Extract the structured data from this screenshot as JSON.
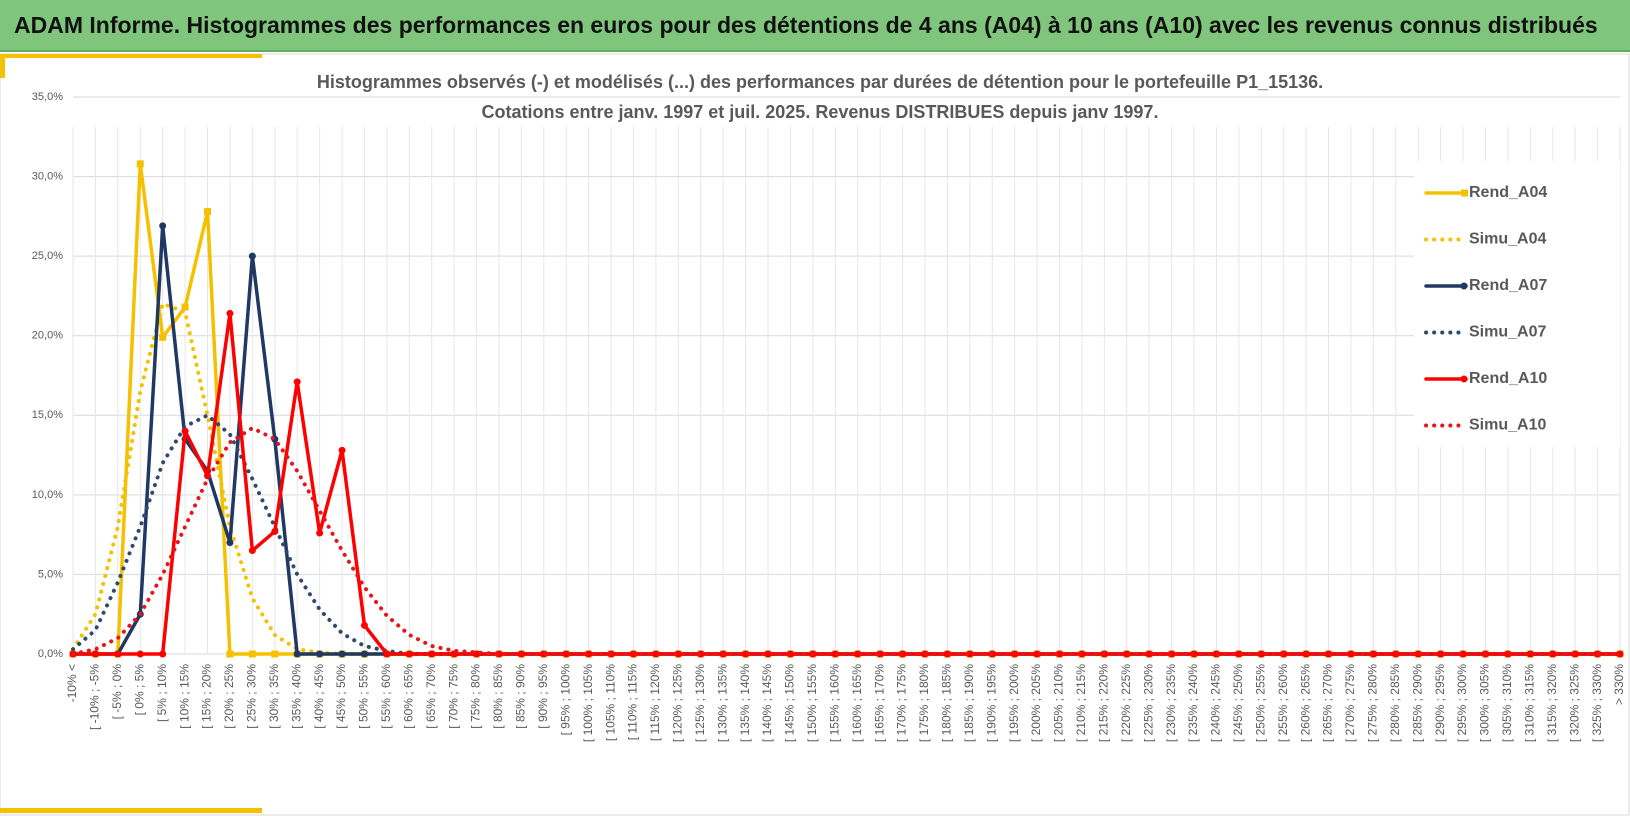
{
  "header": {
    "title": "ADAM Informe. Histogrammes des performances en euros pour des détentions de 4 ans (A04) à 10 ans (A10) avec les revenus connus distribués"
  },
  "chart_data": {
    "type": "line",
    "title": [
      "Histogrammes observés (-) et modélisés (...) des performances par durées de détention pour le portefeuille P1_15136.",
      "Cotations entre janv. 1997 et juil. 2025. Revenus DISTRIBUES depuis janv 1997."
    ],
    "categories": [
      "-10% <",
      "[ -10% ; -5%",
      "[ -5% ; 0%",
      "[ 0% ; 5%",
      "[ 5% ; 10%",
      "[ 10% ; 15%",
      "[ 15% ; 20%",
      "[ 20% ; 25%",
      "[ 25% ; 30%",
      "[ 30% ; 35%",
      "[ 35% ; 40%",
      "[ 40% ; 45%",
      "[ 45% ; 50%",
      "[ 50% ; 55%",
      "[ 55% ; 60%",
      "[ 60% ; 65%",
      "[ 65% ; 70%",
      "[ 70% ; 75%",
      "[ 75% ; 80%",
      "[ 80% ; 85%",
      "[ 85% ; 90%",
      "[ 90% ; 95%",
      "[ 95% ; 100%",
      "[ 100% ; 105%",
      "[ 105% ; 110%",
      "[ 110% ; 115%",
      "[ 115% ; 120%",
      "[ 120% ; 125%",
      "[ 125% ; 130%",
      "[ 130% ; 135%",
      "[ 135% ; 140%",
      "[ 140% ; 145%",
      "[ 145% ; 150%",
      "[ 150% ; 155%",
      "[ 155% ; 160%",
      "[ 160% ; 165%",
      "[ 165% ; 170%",
      "[ 170% ; 175%",
      "[ 175% ; 180%",
      "[ 180% ; 185%",
      "[ 185% ; 190%",
      "[ 190% ; 195%",
      "[ 195% ; 200%",
      "[ 200% ; 205%",
      "[ 205% ; 210%",
      "[ 210% ; 215%",
      "[ 215% ; 220%",
      "[ 220% ; 225%",
      "[ 225% ; 230%",
      "[ 230% ; 235%",
      "[ 235% ; 240%",
      "[ 240% ; 245%",
      "[ 245% ; 250%",
      "[ 250% ; 255%",
      "[ 255% ; 260%",
      "[ 260% ; 265%",
      "[ 265% ; 270%",
      "[ 270% ; 275%",
      "[ 275% ; 280%",
      "[ 280% ; 285%",
      "[ 285% ; 290%",
      "[ 290% ; 295%",
      "[ 295% ; 300%",
      "[ 300% ; 305%",
      "[ 305% ; 310%",
      "[ 310% ; 315%",
      "[ 315% ; 320%",
      "[ 320% ; 325%",
      "[ 325% ; 330%",
      "> 330%"
    ],
    "series": [
      {
        "name": "Rend_A04",
        "color": "#f5c000",
        "dash": false,
        "marker": "square",
        "values": [
          0,
          0,
          0,
          30.8,
          19.9,
          21.8,
          27.8,
          0,
          0,
          0,
          0,
          0,
          0,
          0,
          0,
          0,
          0,
          0,
          0,
          0,
          0,
          0,
          0,
          0,
          0,
          0,
          0,
          0,
          0,
          0,
          0,
          0,
          0,
          0,
          0,
          0,
          0,
          0,
          0,
          0,
          0,
          0,
          0,
          0,
          0,
          0,
          0,
          0,
          0,
          0,
          0,
          0,
          0,
          0,
          0,
          0,
          0,
          0,
          0,
          0,
          0,
          0,
          0,
          0,
          0,
          0,
          0,
          0,
          0,
          0
        ]
      },
      {
        "name": "Simu_A04",
        "color": "#f5c000",
        "dash": true,
        "marker": "none",
        "values": [
          0.3,
          2.5,
          8,
          16.5,
          22,
          21.5,
          15,
          8,
          3.5,
          1.2,
          0.3,
          0.1,
          0,
          0,
          0,
          0,
          0,
          0,
          0,
          0,
          0,
          0,
          0,
          0,
          0,
          0,
          0,
          0,
          0,
          0,
          0,
          0,
          0,
          0,
          0,
          0,
          0,
          0,
          0,
          0,
          0,
          0,
          0,
          0,
          0,
          0,
          0,
          0,
          0,
          0,
          0,
          0,
          0,
          0,
          0,
          0,
          0,
          0,
          0,
          0,
          0,
          0,
          0,
          0,
          0,
          0,
          0,
          0,
          0,
          0
        ]
      },
      {
        "name": "Rend_A07",
        "color": "#1f3864",
        "dash": false,
        "marker": "circle",
        "values": [
          0,
          0,
          0,
          2.5,
          26.9,
          13.5,
          11.5,
          7,
          25,
          13.5,
          0,
          0,
          0,
          0,
          0,
          0,
          0,
          0,
          0,
          0,
          0,
          0,
          0,
          0,
          0,
          0,
          0,
          0,
          0,
          0,
          0,
          0,
          0,
          0,
          0,
          0,
          0,
          0,
          0,
          0,
          0,
          0,
          0,
          0,
          0,
          0,
          0,
          0,
          0,
          0,
          0,
          0,
          0,
          0,
          0,
          0,
          0,
          0,
          0,
          0,
          0,
          0,
          0,
          0,
          0,
          0,
          0,
          0,
          0,
          0
        ]
      },
      {
        "name": "Simu_A07",
        "color": "#2e4a6e",
        "dash": true,
        "marker": "none",
        "values": [
          0.3,
          1.5,
          4.5,
          8,
          12,
          14.3,
          15,
          13.8,
          11,
          8,
          5,
          2.8,
          1.3,
          0.5,
          0.2,
          0,
          0,
          0,
          0,
          0,
          0,
          0,
          0,
          0,
          0,
          0,
          0,
          0,
          0,
          0,
          0,
          0,
          0,
          0,
          0,
          0,
          0,
          0,
          0,
          0,
          0,
          0,
          0,
          0,
          0,
          0,
          0,
          0,
          0,
          0,
          0,
          0,
          0,
          0,
          0,
          0,
          0,
          0,
          0,
          0,
          0,
          0,
          0,
          0,
          0,
          0,
          0,
          0,
          0,
          0
        ]
      },
      {
        "name": "Rend_A10",
        "color": "#ff0000",
        "dash": false,
        "marker": "circle",
        "values": [
          0,
          0,
          0,
          0,
          0,
          14,
          11.2,
          21.4,
          6.5,
          7.7,
          17.1,
          7.6,
          12.8,
          1.8,
          0,
          0,
          0,
          0,
          0,
          0,
          0,
          0,
          0,
          0,
          0,
          0,
          0,
          0,
          0,
          0,
          0,
          0,
          0,
          0,
          0,
          0,
          0,
          0,
          0,
          0,
          0,
          0,
          0,
          0,
          0,
          0,
          0,
          0,
          0,
          0,
          0,
          0,
          0,
          0,
          0,
          0,
          0,
          0,
          0,
          0,
          0,
          0,
          0,
          0,
          0,
          0,
          0,
          0,
          0,
          0
        ]
      },
      {
        "name": "Simu_A10",
        "color": "#e8141b",
        "dash": true,
        "marker": "none",
        "values": [
          0,
          0.3,
          1,
          2.5,
          5,
          8,
          11,
          13.3,
          14.2,
          13.5,
          11.5,
          9,
          6.5,
          4.2,
          2.4,
          1.2,
          0.5,
          0.2,
          0.1,
          0,
          0,
          0,
          0,
          0,
          0,
          0,
          0,
          0,
          0,
          0,
          0,
          0,
          0,
          0,
          0,
          0,
          0,
          0,
          0,
          0,
          0,
          0,
          0,
          0,
          0,
          0,
          0,
          0,
          0,
          0,
          0,
          0,
          0,
          0,
          0,
          0,
          0,
          0,
          0,
          0,
          0,
          0,
          0,
          0,
          0,
          0,
          0,
          0,
          0,
          0
        ]
      }
    ],
    "ylim": [
      0,
      35
    ],
    "yticks": [
      {
        "value": 0,
        "label": "0,0%"
      },
      {
        "value": 5,
        "label": "5,0%"
      },
      {
        "value": 10,
        "label": "10,0%"
      },
      {
        "value": 15,
        "label": "15,0%"
      },
      {
        "value": 20,
        "label": "20,0%"
      },
      {
        "value": 25,
        "label": "25,0%"
      },
      {
        "value": 30,
        "label": "30,0%"
      },
      {
        "value": 35,
        "label": "35,0%"
      }
    ],
    "grid": true,
    "legend": "right"
  }
}
